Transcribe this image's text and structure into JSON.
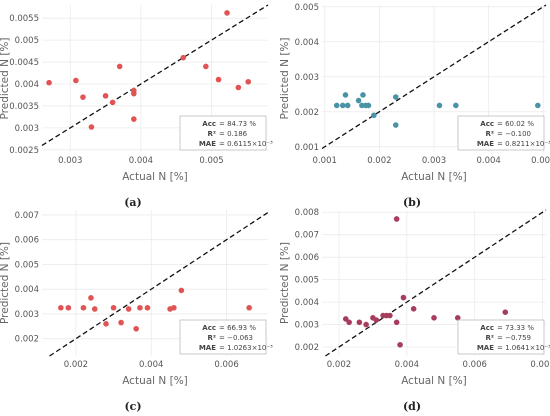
{
  "chart_data": [
    {
      "type": "scatter",
      "caption": "(a)",
      "xlabel": "Actual N [%]",
      "ylabel": "Predicted N [%]",
      "xlim": [
        0.0026,
        0.0058
      ],
      "ylim": [
        0.00245,
        0.0058
      ],
      "xticks": [
        0.003,
        0.004,
        0.005
      ],
      "xtick_labels": [
        "0.003",
        "0.004",
        "0.005"
      ],
      "yticks": [
        0.0025,
        0.003,
        0.0035,
        0.004,
        0.0045,
        0.005,
        0.0055
      ],
      "ytick_labels": [
        "0.0025",
        "0.003",
        "0.0035",
        "0.004",
        "0.0045",
        "0.005",
        "0.0055"
      ],
      "point_color": "#e05454",
      "grid": true,
      "reference_line": "y = x",
      "metrics_position": "bottom-right",
      "metrics": [
        {
          "label": "Acc",
          "value": "= 84.73 %"
        },
        {
          "label": "R²",
          "value": "= 0.186"
        },
        {
          "label": "MAE",
          "value": "= 0.6115×10⁻³"
        }
      ],
      "points": [
        {
          "x": 0.0027,
          "y": 0.00403
        },
        {
          "x": 0.00308,
          "y": 0.00408
        },
        {
          "x": 0.00318,
          "y": 0.0037
        },
        {
          "x": 0.0033,
          "y": 0.00302
        },
        {
          "x": 0.0035,
          "y": 0.00373
        },
        {
          "x": 0.0036,
          "y": 0.00358
        },
        {
          "x": 0.0037,
          "y": 0.0044
        },
        {
          "x": 0.0039,
          "y": 0.00385
        },
        {
          "x": 0.0039,
          "y": 0.00378
        },
        {
          "x": 0.0039,
          "y": 0.0032
        },
        {
          "x": 0.0046,
          "y": 0.0046
        },
        {
          "x": 0.00492,
          "y": 0.0044
        },
        {
          "x": 0.0051,
          "y": 0.0041
        },
        {
          "x": 0.00522,
          "y": 0.00562
        },
        {
          "x": 0.00538,
          "y": 0.00392
        },
        {
          "x": 0.00552,
          "y": 0.00405
        }
      ]
    },
    {
      "type": "scatter",
      "caption": "(b)",
      "xlabel": "Actual N [%]",
      "ylabel": "Predicted N [%]",
      "xlim": [
        0.00095,
        0.00505
      ],
      "ylim": [
        0.00085,
        0.00505
      ],
      "xticks": [
        0.001,
        0.002,
        0.003,
        0.004,
        0.005
      ],
      "xtick_labels": [
        "0.001",
        "0.002",
        "0.003",
        "0.004",
        "0.005"
      ],
      "yticks": [
        0.001,
        0.002,
        0.003,
        0.004,
        0.005
      ],
      "ytick_labels": [
        "0.001",
        "0.002",
        "0.003",
        "0.004",
        "0.005"
      ],
      "point_color": "#4a93a6",
      "grid": true,
      "reference_line": "y = x",
      "metrics_position": "bottom-right",
      "metrics": [
        {
          "label": "Acc",
          "value": "= 60.02 %"
        },
        {
          "label": "R²",
          "value": "= −0.100"
        },
        {
          "label": "MAE",
          "value": "= 0.8211×10⁻³"
        }
      ],
      "points": [
        {
          "x": 0.00122,
          "y": 0.00218
        },
        {
          "x": 0.00133,
          "y": 0.00218
        },
        {
          "x": 0.00138,
          "y": 0.00248
        },
        {
          "x": 0.00142,
          "y": 0.00218
        },
        {
          "x": 0.00162,
          "y": 0.00232
        },
        {
          "x": 0.00168,
          "y": 0.00218
        },
        {
          "x": 0.0017,
          "y": 0.00248
        },
        {
          "x": 0.00175,
          "y": 0.00218
        },
        {
          "x": 0.0018,
          "y": 0.00218
        },
        {
          "x": 0.0019,
          "y": 0.0019
        },
        {
          "x": 0.0023,
          "y": 0.00242
        },
        {
          "x": 0.0023,
          "y": 0.00162
        },
        {
          "x": 0.0031,
          "y": 0.00218
        },
        {
          "x": 0.0034,
          "y": 0.00218
        },
        {
          "x": 0.0049,
          "y": 0.00218
        }
      ]
    },
    {
      "type": "scatter",
      "caption": "(c)",
      "xlabel": "Actual N [%]",
      "ylabel": "Predicted N [%]",
      "xlim": [
        0.0011,
        0.0071
      ],
      "ylim": [
        0.0013,
        0.0072
      ],
      "xticks": [
        0.002,
        0.004,
        0.006
      ],
      "xtick_labels": [
        "0.002",
        "0.004",
        "0.006"
      ],
      "yticks": [
        0.002,
        0.003,
        0.004,
        0.005,
        0.006,
        0.007
      ],
      "ytick_labels": [
        "0.002",
        "0.003",
        "0.004",
        "0.005",
        "0.006",
        "0.007"
      ],
      "point_color": "#e05454",
      "grid": true,
      "reference_line": "y = x",
      "metrics_position": "bottom-right",
      "metrics": [
        {
          "label": "Acc",
          "value": "= 66.93 %"
        },
        {
          "label": "R²",
          "value": "= −0.063"
        },
        {
          "label": "MAE",
          "value": "= 1.0263×10⁻³"
        }
      ],
      "points": [
        {
          "x": 0.0016,
          "y": 0.00325
        },
        {
          "x": 0.0018,
          "y": 0.00325
        },
        {
          "x": 0.0022,
          "y": 0.00325
        },
        {
          "x": 0.0024,
          "y": 0.00365
        },
        {
          "x": 0.0025,
          "y": 0.0032
        },
        {
          "x": 0.0028,
          "y": 0.0026
        },
        {
          "x": 0.003,
          "y": 0.00325
        },
        {
          "x": 0.0032,
          "y": 0.00265
        },
        {
          "x": 0.0034,
          "y": 0.0032
        },
        {
          "x": 0.0036,
          "y": 0.0024
        },
        {
          "x": 0.0037,
          "y": 0.00325
        },
        {
          "x": 0.0039,
          "y": 0.00325
        },
        {
          "x": 0.0045,
          "y": 0.0032
        },
        {
          "x": 0.0046,
          "y": 0.00325
        },
        {
          "x": 0.0048,
          "y": 0.00395
        },
        {
          "x": 0.0066,
          "y": 0.00325
        }
      ]
    },
    {
      "type": "scatter",
      "caption": "(d)",
      "xlabel": "Actual N [%]",
      "ylabel": "Predicted N [%]",
      "xlim": [
        0.0015,
        0.0081
      ],
      "ylim": [
        0.0016,
        0.0081
      ],
      "xticks": [
        0.002,
        0.004,
        0.006,
        0.008
      ],
      "xtick_labels": [
        "0.002",
        "0.004",
        "0.006",
        "0.008"
      ],
      "yticks": [
        0.002,
        0.003,
        0.004,
        0.005,
        0.006,
        0.007,
        0.008
      ],
      "ytick_labels": [
        "0.002",
        "0.003",
        "0.004",
        "0.005",
        "0.006",
        "0.007",
        "0.008"
      ],
      "point_color": "#a83c5c",
      "grid": true,
      "reference_line": "y = x",
      "metrics_position": "bottom-right",
      "metrics": [
        {
          "label": "Acc",
          "value": "= 73.33 %"
        },
        {
          "label": "R²",
          "value": "= −0.759"
        },
        {
          "label": "MAE",
          "value": "= 1.0641×10⁻³"
        }
      ],
      "points": [
        {
          "x": 0.0022,
          "y": 0.00325
        },
        {
          "x": 0.0023,
          "y": 0.0031
        },
        {
          "x": 0.0026,
          "y": 0.0031
        },
        {
          "x": 0.0028,
          "y": 0.003
        },
        {
          "x": 0.003,
          "y": 0.0033
        },
        {
          "x": 0.0031,
          "y": 0.0032
        },
        {
          "x": 0.0033,
          "y": 0.0034
        },
        {
          "x": 0.0034,
          "y": 0.0034
        },
        {
          "x": 0.0035,
          "y": 0.0034
        },
        {
          "x": 0.0037,
          "y": 0.0031
        },
        {
          "x": 0.0037,
          "y": 0.0077
        },
        {
          "x": 0.0038,
          "y": 0.0021
        },
        {
          "x": 0.0039,
          "y": 0.0042
        },
        {
          "x": 0.0042,
          "y": 0.0037
        },
        {
          "x": 0.0048,
          "y": 0.0033
        },
        {
          "x": 0.0055,
          "y": 0.0033
        },
        {
          "x": 0.0069,
          "y": 0.00355
        }
      ]
    }
  ]
}
